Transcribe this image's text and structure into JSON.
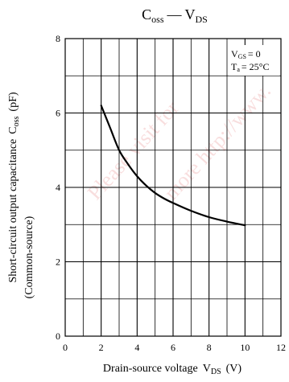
{
  "chart_data": {
    "type": "line",
    "title": {
      "main": "C",
      "main_sub": "oss",
      "dash": "—",
      "tail": "V",
      "tail_sub": "DS"
    },
    "xlabel": {
      "text": "Drain-source voltage",
      "sym": "V",
      "sym_sub": "DS",
      "unit": "(V)"
    },
    "ylabel": {
      "line1": "Short-circuit output capacitance",
      "sym": "C",
      "sym_sub": "oss",
      "unit": "(pF)",
      "line2": "(Common-source)"
    },
    "xlim": [
      0,
      12
    ],
    "ylim": [
      0,
      8
    ],
    "xticks": [
      "0",
      "2",
      "4",
      "6",
      "8",
      "10",
      "12"
    ],
    "yticks": [
      "0",
      "2",
      "4",
      "6",
      "8"
    ],
    "grid": true,
    "conditions": {
      "vgs_sym": "V",
      "vgs_sub": "GS",
      "vgs_val": "= 0",
      "ta_sym": "T",
      "ta_sub": "a",
      "ta_val": "= 25°C"
    },
    "series": [
      {
        "color": "#000000",
        "x": [
          2,
          2.5,
          3,
          3.5,
          4,
          4.5,
          5,
          5.5,
          6,
          7,
          8,
          9,
          10
        ],
        "y": [
          6.2,
          5.6,
          5.0,
          4.62,
          4.3,
          4.05,
          3.85,
          3.7,
          3.58,
          3.37,
          3.2,
          3.08,
          2.98
        ]
      }
    ],
    "watermark": "Please visit for more http://www.",
    "watermark_color": "#e98b8b"
  }
}
